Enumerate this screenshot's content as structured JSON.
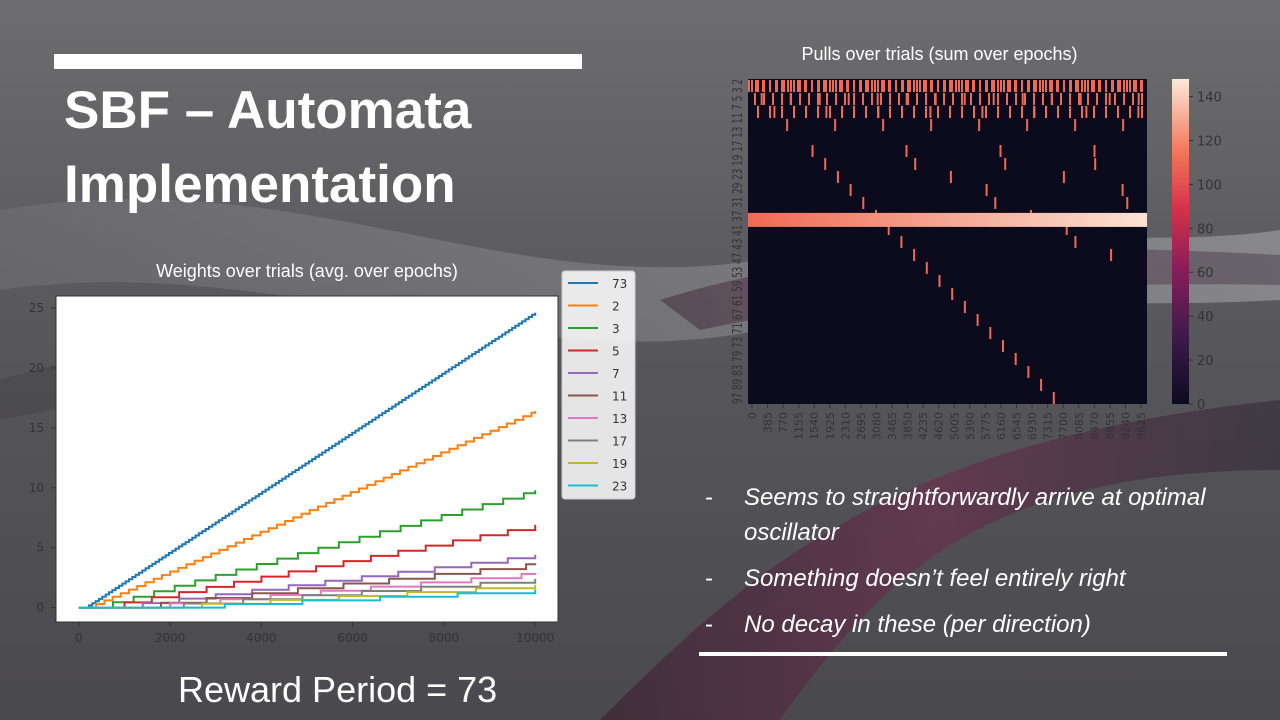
{
  "slide": {
    "title_line1": "SBF – Automata",
    "title_line2": "Implementation",
    "reward_text": "Reward Period = 73",
    "bullets": [
      {
        "dash": "-",
        "text": "Seems to straightforwardly  arrive at optimal oscillator"
      },
      {
        "dash": "-",
        "text": "Something doesn’t feel entirely right"
      },
      {
        "dash": "-",
        "text": "No decay in these (per direction)"
      }
    ]
  },
  "colors": {
    "title": "#ffffff",
    "accent_bar": "#ffffff",
    "heatmap_bg": "#0c0b1d",
    "heatmap_mark": "#f06a52",
    "heatmap_band_start": "#f06a52",
    "heatmap_band_end": "#fbe3d3"
  },
  "chart_data": [
    {
      "type": "line",
      "title": "Weights over trials (avg.  over epochs)",
      "xlabel": "",
      "ylabel": "",
      "xlim": [
        -500,
        10500
      ],
      "ylim": [
        -1.2,
        26
      ],
      "xticks": [
        0,
        2000,
        4000,
        6000,
        8000,
        10000
      ],
      "yticks": [
        0,
        5,
        10,
        15,
        20,
        25
      ],
      "legend_position": "outside right",
      "series": [
        {
          "name": "73",
          "color": "#1f77b4",
          "start": 150,
          "end_value": 24.6,
          "step": 73
        },
        {
          "name": "2",
          "color": "#ff7f0e",
          "start": 200,
          "end_value": 16.4,
          "step": 180
        },
        {
          "name": "3",
          "color": "#2ca02c",
          "start": 300,
          "end_value": 9.8,
          "step": 450
        },
        {
          "name": "5",
          "color": "#d62728",
          "start": 400,
          "end_value": 6.9,
          "step": 600
        },
        {
          "name": "7",
          "color": "#9467bd",
          "start": 600,
          "end_value": 4.4,
          "step": 800
        },
        {
          "name": "11",
          "color": "#8c564b",
          "start": 800,
          "end_value": 3.7,
          "step": 1000
        },
        {
          "name": "13",
          "color": "#e377c2",
          "start": 900,
          "end_value": 2.9,
          "step": 1100
        },
        {
          "name": "17",
          "color": "#7f7f7f",
          "start": 1000,
          "end_value": 2.4,
          "step": 1300
        },
        {
          "name": "19",
          "color": "#bcbd22",
          "start": 1200,
          "end_value": 1.9,
          "step": 1500
        },
        {
          "name": "23",
          "color": "#17becf",
          "start": 1500,
          "end_value": 1.5,
          "step": 1700
        }
      ]
    },
    {
      "type": "heatmap",
      "title": "Pulls over trials (sum over epochs)",
      "ylabel_text": "97 89 83 79 73 71 67 61 59 53 47 43 41 37 31 29 23 19 17 13 11 7 5 3 2",
      "xticks": [
        "0",
        "385",
        "770",
        "1155",
        "1540",
        "1925",
        "2310",
        "2695",
        "3080",
        "3465",
        "3850",
        "4235",
        "4620",
        "5005",
        "5390",
        "5775",
        "6160",
        "6545",
        "6930",
        "7315",
        "7700",
        "8085",
        "8470",
        "8855",
        "9240",
        "9625"
      ],
      "colorbar_ticks": [
        0,
        20,
        40,
        60,
        80,
        100,
        120,
        140
      ],
      "color_range": [
        0,
        148
      ],
      "rows": 25,
      "highlight_row": 4,
      "highlight_label": "73"
    }
  ]
}
